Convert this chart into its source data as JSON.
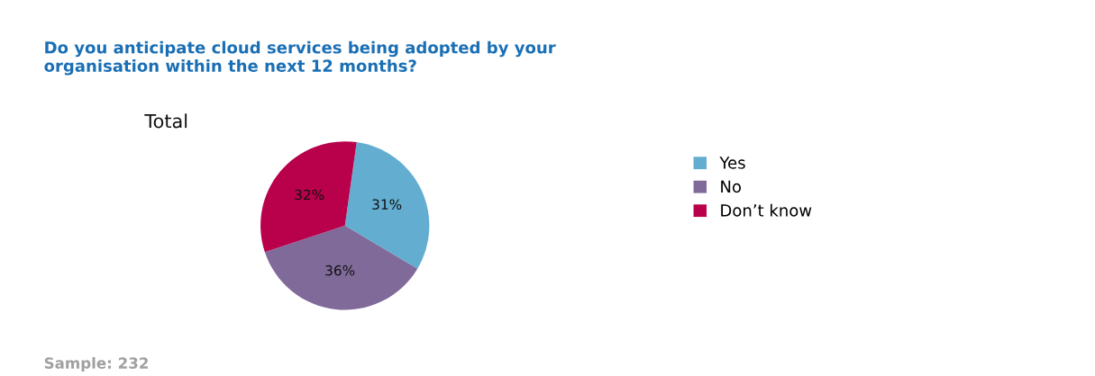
{
  "chart_data": {
    "type": "pie",
    "title": "Do you anticipate cloud services being adopted by your\norganisation within the next 12 months?",
    "subtitle": "Total",
    "categories": [
      "Yes",
      "No",
      "Don’t know"
    ],
    "values": [
      31,
      36,
      32
    ],
    "value_labels": [
      "31%",
      "36%",
      "32%"
    ],
    "colors": [
      "#63aed0",
      "#806a9a",
      "#b8004b"
    ],
    "legend": "right",
    "annotations": [
      "Sample: 232"
    ]
  }
}
